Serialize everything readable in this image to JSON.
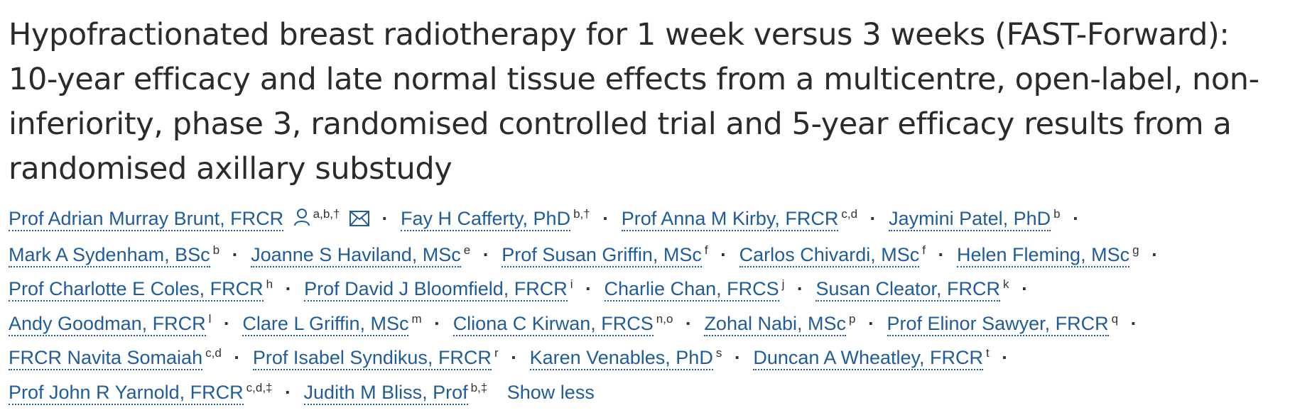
{
  "title": {
    "lines": [
      "Hypofractionated breast radiotherapy for 1 week versus 3 weeks (FAST-Forward):",
      "10-year efficacy and late normal tissue effects from a multicentre, open-label, non-",
      "inferiority, phase 3, randomised controlled trial and 5-year efficacy results from a",
      "randomised axillary substudy"
    ]
  },
  "separator": "·",
  "authors": [
    {
      "name": "Prof Adrian Murray Brunt, FRCR",
      "sup": "a,b,†"
    },
    {
      "name": "Fay H Cafferty, PhD",
      "sup": "b,†"
    },
    {
      "name": "Prof Anna M Kirby, FRCR",
      "sup": "c,d"
    },
    {
      "name": "Jaymini Patel, PhD",
      "sup": "b"
    },
    {
      "name": "Mark A Sydenham, BSc",
      "sup": "b"
    },
    {
      "name": "Joanne S Haviland, MSc",
      "sup": "e"
    },
    {
      "name": "Prof Susan Griffin, MSc",
      "sup": "f"
    },
    {
      "name": "Carlos Chivardi, MSc",
      "sup": "f"
    },
    {
      "name": "Helen Fleming, MSc",
      "sup": "g"
    },
    {
      "name": "Prof Charlotte E Coles, FRCR",
      "sup": "h"
    },
    {
      "name": "Prof David J Bloomfield, FRCR",
      "sup": "i"
    },
    {
      "name": "Charlie Chan, FRCS",
      "sup": "j"
    },
    {
      "name": "Susan Cleator, FRCR",
      "sup": "k"
    },
    {
      "name": "Andy Goodman, FRCR",
      "sup": "l"
    },
    {
      "name": "Clare L Griffin, MSc",
      "sup": "m"
    },
    {
      "name": "Cliona C Kirwan, FRCS",
      "sup": "n,o"
    },
    {
      "name": "Zohal Nabi, MSc",
      "sup": "p"
    },
    {
      "name": "Prof Elinor Sawyer, FRCR",
      "sup": "q"
    },
    {
      "name": "FRCR Navita Somaiah",
      "sup": "c,d"
    },
    {
      "name": "Prof Isabel Syndikus, FRCR",
      "sup": "r"
    },
    {
      "name": "Karen Venables, PhD",
      "sup": "s"
    },
    {
      "name": "Duncan A Wheatley, FRCR",
      "sup": "t"
    },
    {
      "name": "Prof John R Yarnold, FRCR",
      "sup": "c,d,‡"
    },
    {
      "name": "Judith M Bliss, Prof",
      "sup": "b,‡"
    }
  ],
  "icons": {
    "profile": "person-icon",
    "email": "envelope-icon"
  },
  "show_less_label": "Show less",
  "colors": {
    "link": "#1f5c99",
    "text": "#2b2b2b"
  }
}
